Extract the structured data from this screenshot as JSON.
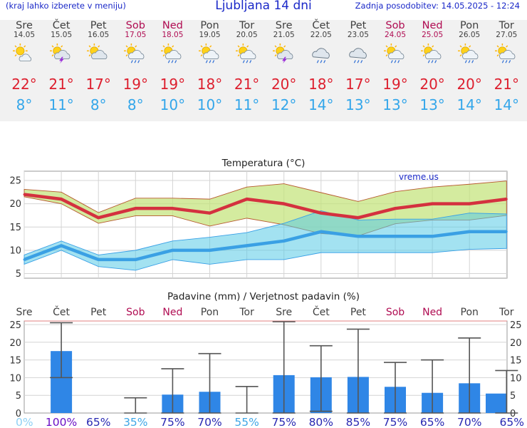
{
  "header": {
    "menu_hint": "(kraj lahko izberete v meniju)",
    "title": "Ljubljana 14 dni",
    "last_update": "Zadnja posodobitev: 14.05.2025 - 12:24"
  },
  "colors": {
    "weekday": "#404040",
    "weekend": "#b00c52",
    "high_temp": "#dd1f2e",
    "low_temp": "#33a6ea",
    "bar": "#2f86e6",
    "header_text": "#1a28c8"
  },
  "days": [
    {
      "name": "Sre",
      "date": "14.05",
      "weekend": false,
      "icon": "sun-partly-cloudy-icon",
      "high": "22°",
      "low": "8°"
    },
    {
      "name": "Čet",
      "date": "15.05",
      "weekend": false,
      "icon": "thunderstorm-sun-icon",
      "high": "21°",
      "low": "11°"
    },
    {
      "name": "Pet",
      "date": "16.05",
      "weekend": false,
      "icon": "partly-cloudy-icon",
      "high": "17°",
      "low": "8°"
    },
    {
      "name": "Sob",
      "date": "17.05",
      "weekend": true,
      "icon": "sun-rain-icon",
      "high": "19°",
      "low": "8°"
    },
    {
      "name": "Ned",
      "date": "18.05",
      "weekend": true,
      "icon": "sun-rain-icon",
      "high": "19°",
      "low": "10°"
    },
    {
      "name": "Pon",
      "date": "19.05",
      "weekend": false,
      "icon": "sun-rain-icon",
      "high": "18°",
      "low": "10°"
    },
    {
      "name": "Tor",
      "date": "20.05",
      "weekend": false,
      "icon": "sun-rain-icon",
      "high": "21°",
      "low": "11°"
    },
    {
      "name": "Sre",
      "date": "21.05",
      "weekend": false,
      "icon": "thunderstorm-sun-icon",
      "high": "20°",
      "low": "12°"
    },
    {
      "name": "Čet",
      "date": "22.05",
      "weekend": false,
      "icon": "rain-cloud-icon",
      "high": "18°",
      "low": "14°"
    },
    {
      "name": "Pet",
      "date": "23.05",
      "weekend": false,
      "icon": "rain-cloud-icon",
      "high": "17°",
      "low": "13°"
    },
    {
      "name": "Sob",
      "date": "24.05",
      "weekend": true,
      "icon": "sun-rain-icon",
      "high": "19°",
      "low": "13°"
    },
    {
      "name": "Ned",
      "date": "25.05",
      "weekend": true,
      "icon": "sun-rain-icon",
      "high": "20°",
      "low": "13°"
    },
    {
      "name": "Pon",
      "date": "26.05",
      "weekend": false,
      "icon": "sun-rain-icon",
      "high": "20°",
      "low": "14°"
    },
    {
      "name": "Tor",
      "date": "27.05",
      "weekend": false,
      "icon": "sun-rain-icon",
      "high": "21°",
      "low": "14°"
    }
  ],
  "chart_data": [
    {
      "type": "line",
      "title": "Temperatura (°C)",
      "watermark": "vreme.us",
      "x": [
        "14.05",
        "15.05",
        "16.05",
        "17.05",
        "18.05",
        "19.05",
        "20.05",
        "21.05",
        "22.05",
        "23.05",
        "24.05",
        "25.05",
        "26.05",
        "27.05"
      ],
      "ylim": [
        4,
        27
      ],
      "yticks": [
        5,
        10,
        15,
        20,
        25
      ],
      "grid": true,
      "series": [
        {
          "values": [
            22,
            21,
            17,
            19,
            19,
            18,
            21,
            20,
            18,
            17,
            19,
            20,
            20,
            21
          ],
          "color": "#d4313f",
          "band_lower": [
            21.5,
            20,
            15.8,
            17.4,
            17.4,
            15.2,
            16.9,
            15.5,
            13.6,
            13.1,
            15.7,
            16.5,
            16.5,
            17.5
          ],
          "band_upper": [
            23.1,
            22.5,
            18.1,
            21.2,
            21.2,
            21.0,
            23.6,
            24.3,
            22.4,
            20.5,
            22.6,
            23.6,
            24.2,
            24.9
          ]
        },
        {
          "values": [
            8,
            11,
            8,
            8,
            10,
            10,
            11,
            12,
            14,
            13,
            13,
            13,
            14,
            14
          ],
          "color": "#3aa0e4",
          "band_lower": [
            7,
            10,
            6.5,
            5.7,
            8,
            7,
            8,
            8,
            9.5,
            9.5,
            9.5,
            9.5,
            10.2,
            10.4
          ],
          "band_upper": [
            9,
            12,
            9,
            10,
            12,
            12.8,
            13.8,
            15.8,
            18.5,
            16.5,
            16.7,
            16.7,
            18.0,
            17.8
          ]
        }
      ]
    },
    {
      "type": "bar",
      "title": "Padavine (mm) / Verjetnost padavin (%)",
      "categories": [
        "Sre",
        "Čet",
        "Pet",
        "Sob",
        "Ned",
        "Pon",
        "Tor",
        "Sre",
        "Čet",
        "Pet",
        "Sob",
        "Ned",
        "Pon",
        "Tor"
      ],
      "weekend": [
        false,
        false,
        false,
        true,
        true,
        false,
        false,
        false,
        false,
        false,
        true,
        true,
        false,
        false
      ],
      "ylim": [
        0,
        26
      ],
      "yticks": [
        0,
        5,
        10,
        15,
        20,
        25
      ],
      "grid": true,
      "values": [
        0,
        17.5,
        0,
        0,
        5.2,
        6,
        0,
        10.7,
        10.1,
        10.2,
        7.4,
        5.7,
        8.4,
        5.5
      ],
      "error_low": [
        0,
        10,
        0,
        0,
        0,
        0,
        0,
        0,
        0.5,
        0,
        0,
        0,
        0,
        0
      ],
      "error_high": [
        0,
        25.5,
        0,
        4.3,
        12.5,
        16.8,
        7.5,
        25.8,
        19,
        23.7,
        14.3,
        15,
        21.2,
        12
      ],
      "probabilities": [
        "0%",
        "100%",
        "65%",
        "35%",
        "75%",
        "70%",
        "55%",
        "75%",
        "80%",
        "85%",
        "75%",
        "65%",
        "70%",
        "65%"
      ],
      "prob_colors": [
        "#8fd1f5",
        "#6a10c6",
        "#2828b2",
        "#3ea6e6",
        "#2828b2",
        "#2828b2",
        "#3ea6e6",
        "#2828b2",
        "#2828b2",
        "#2828b2",
        "#2828b2",
        "#2828b2",
        "#2828b2",
        "#2828b2"
      ]
    }
  ]
}
